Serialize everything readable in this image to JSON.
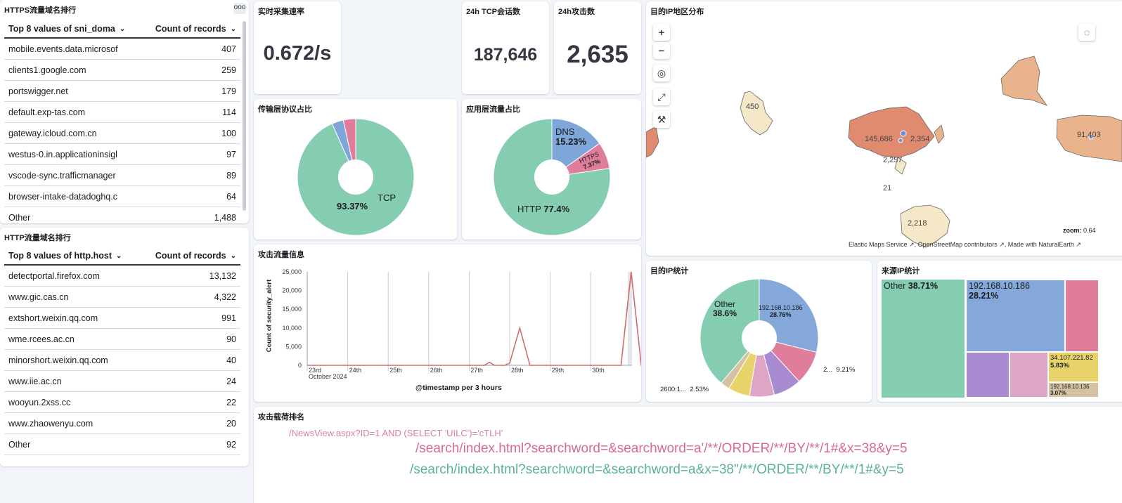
{
  "https_table": {
    "title": "HTTPS流量域名排行",
    "more": "ooo",
    "col1": "Top 8 values of sni_doma",
    "col2": "Count of records",
    "rows": [
      {
        "name": "mobile.events.data.microsof",
        "count": "407"
      },
      {
        "name": "clients1.google.com",
        "count": "259"
      },
      {
        "name": "portswigger.net",
        "count": "179"
      },
      {
        "name": "default.exp-tas.com",
        "count": "114"
      },
      {
        "name": "gateway.icloud.com.cn",
        "count": "100"
      },
      {
        "name": "westus-0.in.applicationinsigl",
        "count": "97"
      },
      {
        "name": "vscode-sync.trafficmanager",
        "count": "89"
      },
      {
        "name": "browser-intake-datadoghq.c",
        "count": "64"
      },
      {
        "name": "Other",
        "count": "1,488"
      }
    ]
  },
  "http_table": {
    "title": "HTTP流量域名排行",
    "col1": "Top 8 values of http.host",
    "col2": "Count of records",
    "rows": [
      {
        "name": "detectportal.firefox.com",
        "count": "13,132"
      },
      {
        "name": "www.gic.cas.cn",
        "count": "4,322"
      },
      {
        "name": "extshort.weixin.qq.com",
        "count": "991"
      },
      {
        "name": "wme.rcees.ac.cn",
        "count": "90"
      },
      {
        "name": "minorshort.weixin.qq.com",
        "count": "40"
      },
      {
        "name": "www.iie.ac.cn",
        "count": "24"
      },
      {
        "name": "wooyun.2xss.cc",
        "count": "22"
      },
      {
        "name": "www.zhaowenyu.com",
        "count": "20"
      },
      {
        "name": "Other",
        "count": "92"
      }
    ]
  },
  "metrics": {
    "rate_title": "实时采集速率",
    "rate_value": "0.672/s",
    "tcp_title": "24h TCP会话数",
    "tcp_value": "187,646",
    "attack_title": "24h攻击数",
    "attack_value": "2,635"
  },
  "transport_pie": {
    "title": "传输层协议占比",
    "label_pct": "93.37%",
    "label_name": "TCP",
    "slices": [
      {
        "name": "TCP",
        "value": 93.37,
        "color": "#85cdb0"
      },
      {
        "name": "",
        "value": 3.2,
        "color": "#7fa6d9"
      },
      {
        "name": "",
        "value": 3.43,
        "color": "#e07d9a"
      }
    ]
  },
  "app_pie": {
    "title": "应用层流量占比",
    "dns_name": "DNS",
    "dns_pct": "15.23%",
    "https_name": "HTTPS",
    "https_pct": "7.37%",
    "http_name": "HTTP",
    "http_pct": "77.4%",
    "slices": [
      {
        "name": "DNS",
        "value": 15.23,
        "color": "#7fa6d9"
      },
      {
        "name": "HTTPS",
        "value": 7.37,
        "color": "#e07d9a"
      },
      {
        "name": "HTTP",
        "value": 77.4,
        "color": "#85cdb0"
      }
    ]
  },
  "attack_chart": {
    "title": "攻击流量信息",
    "chart_data": {
      "type": "line",
      "ylabel": "Count of security_alert",
      "xlabel": "@timestamp per 3 hours",
      "y_ticks": [
        "0",
        "5,000",
        "10,000",
        "15,000",
        "20,000",
        "25,000"
      ],
      "ylim": [
        0,
        25000
      ],
      "x_ticks": [
        "23rd",
        "24th",
        "25th",
        "26th",
        "27th",
        "28th",
        "29th",
        "30th"
      ],
      "x_sub": "October 2024",
      "series": [
        {
          "color": "#d36c6c",
          "values": [
            {
              "x": "2024-10-23T00:00",
              "y": 0
            },
            {
              "x": "2024-10-27T09:00",
              "y": 0
            },
            {
              "x": "2024-10-27T12:00",
              "y": 800
            },
            {
              "x": "2024-10-27T15:00",
              "y": 0
            },
            {
              "x": "2024-10-27T21:00",
              "y": 0
            },
            {
              "x": "2024-10-28T00:00",
              "y": 600
            },
            {
              "x": "2024-10-28T06:00",
              "y": 10000
            },
            {
              "x": "2024-10-28T12:00",
              "y": 0
            },
            {
              "x": "2024-10-30T18:00",
              "y": 0
            },
            {
              "x": "2024-10-31T00:00",
              "y": 25000
            },
            {
              "x": "2024-10-31T06:00",
              "y": 0
            },
            {
              "x": "2024-10-31T09:00",
              "y": 0
            }
          ]
        }
      ]
    }
  },
  "map": {
    "title": "目的IP地区分布",
    "labels": [
      "450",
      "145,686",
      "2,354",
      "2,257",
      "21",
      "2,218",
      "91,403"
    ],
    "zoom_label": "zoom:",
    "zoom_value": "0.64",
    "attribution": [
      "Elastic Maps Service",
      "OpenStreetMap contributors",
      "Made with NaturalEarth"
    ],
    "region_colors": {
      "high": "#e08a6f",
      "mid": "#e9b48b",
      "low": "#f5e8c8"
    }
  },
  "dest_ip": {
    "title": "目的IP统计",
    "other_name": "Other",
    "other_pct": "38.6%",
    "top_name": "192.168.10.186",
    "top_pct": "28.76%",
    "right_label": "2...  9.21%",
    "left_label": "2600:1...  2.53%",
    "slices": [
      {
        "value": 28.76,
        "color": "#85a8da"
      },
      {
        "value": 9.21,
        "color": "#e07d9a"
      },
      {
        "value": 7.6,
        "color": "#a98bd1"
      },
      {
        "value": 6.8,
        "color": "#dea6c6"
      },
      {
        "value": 5.9,
        "color": "#e8d36b"
      },
      {
        "value": 2.53,
        "color": "#d4c2a2"
      },
      {
        "value": 38.6,
        "color": "#85cdb0"
      }
    ]
  },
  "src_ip": {
    "title": "来源IP统计",
    "other_name": "Other",
    "other_pct": "38.71%",
    "top_name": "192.168.10.186",
    "top_pct": "28.21%",
    "ip3_name": "34.107.221.82",
    "ip3_pct": "5.83%",
    "ip4_name": "192.168.10.136",
    "ip4_pct": "3.07%"
  },
  "payload": {
    "title": "攻击载荷排名",
    "items": [
      {
        "text": "/NewsView.aspx?ID=1 AND (SELECT 'UILC')='cTLH'",
        "color": "#d97fa0"
      },
      {
        "text": "/search/index.html?searchword=&searchword=a'/**/ORDER/**/BY/**/1#&x=38&y=5",
        "color": "#d96a8e"
      },
      {
        "text": "/search/index.html?searchword=&searchword=a&x=38\"/**/ORDER/**/BY/**/1#&y=5",
        "color": "#5ab48f"
      }
    ]
  }
}
